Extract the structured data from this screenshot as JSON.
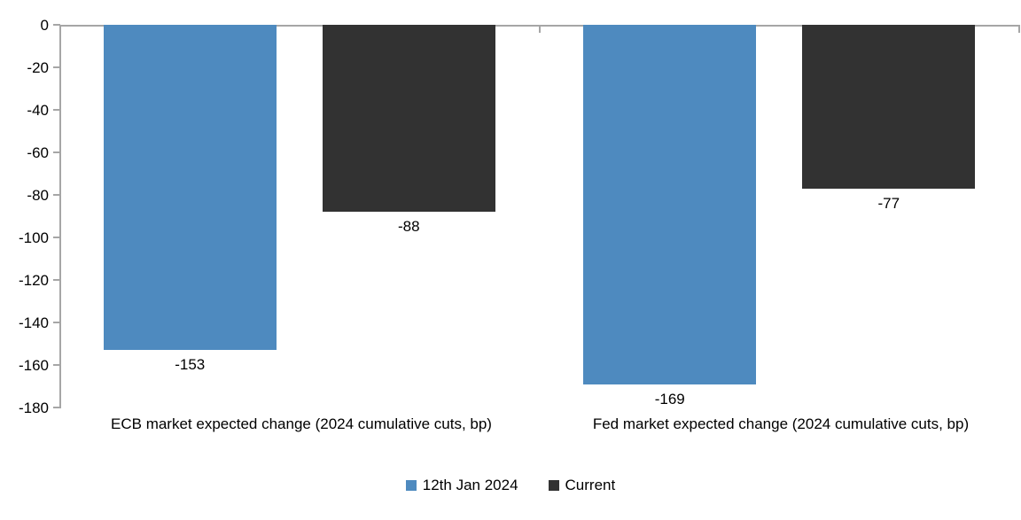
{
  "chart_data": {
    "type": "bar",
    "categories": [
      "ECB market expected change (2024 cumulative cuts, bp)",
      "Fed market expected change (2024 cumulative cuts, bp)"
    ],
    "series": [
      {
        "name": "12th Jan 2024",
        "color": "#4e8abf",
        "values": [
          -153,
          -169
        ]
      },
      {
        "name": "Current",
        "color": "#323232",
        "values": [
          -88,
          -77
        ]
      }
    ],
    "data_labels": [
      [
        "-153",
        "-169"
      ],
      [
        "-88",
        "-77"
      ]
    ],
    "ylim": [
      -180,
      0
    ],
    "yticks": [
      0,
      -20,
      -40,
      -60,
      -80,
      -100,
      -120,
      -140,
      -160,
      -180
    ],
    "ytick_labels": [
      "0",
      "-20",
      "-40",
      "-60",
      "-80",
      "-100",
      "-120",
      "-140",
      "-160",
      "-180"
    ],
    "grid": false,
    "legend_position": "bottom",
    "axis_color": "#a6a6a6",
    "text_color": "#000000",
    "background_color": "#ffffff"
  },
  "legend": {
    "items": [
      {
        "label": "12th Jan 2024",
        "color": "#4e8abf"
      },
      {
        "label": "Current",
        "color": "#323232"
      }
    ]
  }
}
